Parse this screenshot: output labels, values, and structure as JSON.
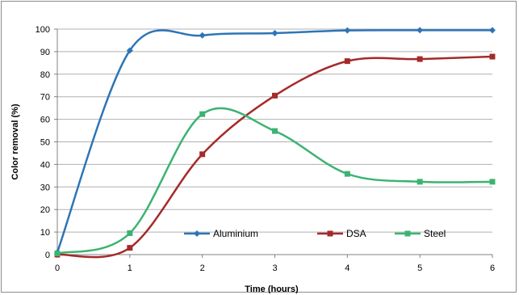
{
  "chart_data": {
    "type": "line",
    "title": "",
    "xlabel": "Time (hours)",
    "ylabel": "Color removal (%)",
    "x": [
      0,
      1,
      2,
      3,
      4,
      5,
      6
    ],
    "xlim": [
      0,
      6
    ],
    "ylim": [
      0,
      100
    ],
    "x_ticks": [
      "0",
      "1",
      "2",
      "3",
      "4",
      "5",
      "6"
    ],
    "y_ticks": [
      "0",
      "10",
      "20",
      "30",
      "40",
      "50",
      "60",
      "70",
      "80",
      "90",
      "100"
    ],
    "grid": "horizontal",
    "legend_position": "bottom-inside",
    "series": [
      {
        "name": "Aluminium",
        "marker": "diamond",
        "color": "#2E75B6",
        "values": [
          1,
          90.5,
          97.2,
          98.2,
          99.4,
          99.5,
          99.5
        ]
      },
      {
        "name": "DSA",
        "marker": "square",
        "color": "#A52A2A",
        "values": [
          0,
          3,
          44.5,
          70.5,
          85.8,
          86.7,
          87.8
        ]
      },
      {
        "name": "Steel",
        "marker": "square",
        "color": "#3CB371",
        "values": [
          0.5,
          9.5,
          62.3,
          54.8,
          35.8,
          32.3,
          32.3
        ]
      }
    ]
  }
}
